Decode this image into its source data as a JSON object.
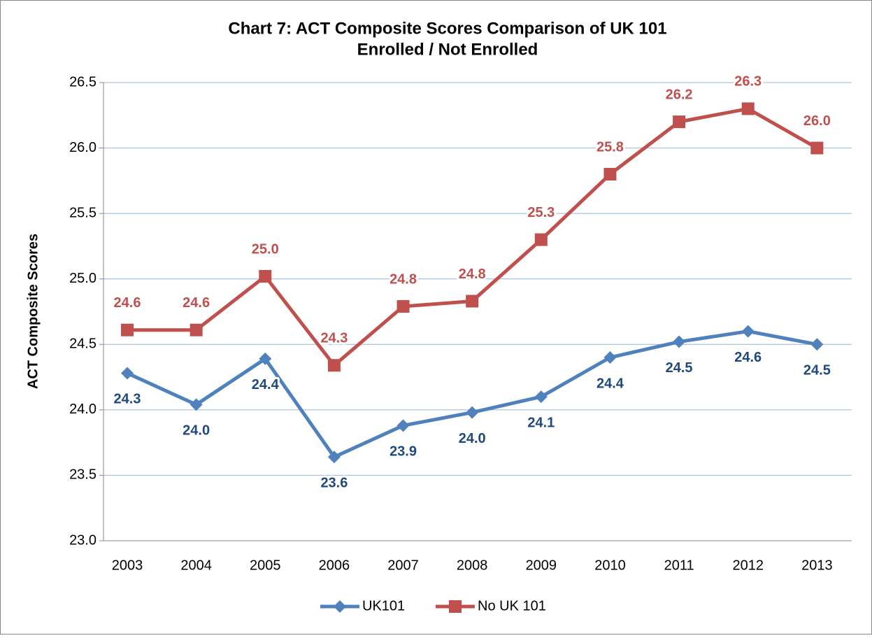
{
  "chart_data": {
    "type": "line",
    "title": [
      "Chart 7: ACT Composite Scores Comparison of UK 101",
      "Enrolled / Not Enrolled"
    ],
    "y_label": "ACT Composite Scores",
    "categories": [
      "2003",
      "2004",
      "2005",
      "2006",
      "2007",
      "2008",
      "2009",
      "2010",
      "2011",
      "2012",
      "2013"
    ],
    "series": [
      {
        "name": "UK101",
        "color": "#4f81bd",
        "label_color": "#1f497d",
        "marker": "diamond",
        "values": [
          24.28,
          24.04,
          24.39,
          23.64,
          23.88,
          23.98,
          24.1,
          24.4,
          24.52,
          24.6,
          24.5
        ],
        "value_labels": [
          "24.3",
          "24.0",
          "24.4",
          "23.6",
          "23.9",
          "24.0",
          "24.1",
          "24.4",
          "24.5",
          "24.6",
          "24.5"
        ]
      },
      {
        "name": "No UK 101",
        "color": "#c0504d",
        "label_color": "#c0504d",
        "marker": "square",
        "values": [
          24.61,
          24.61,
          25.02,
          24.34,
          24.79,
          24.83,
          25.3,
          25.8,
          26.2,
          26.3,
          26.0
        ],
        "value_labels": [
          "24.6",
          "24.6",
          "25.0",
          "24.3",
          "24.8",
          "24.8",
          "25.3",
          "25.8",
          "26.2",
          "26.3",
          "26.0"
        ]
      }
    ],
    "ylim": [
      23,
      26.5
    ],
    "yticks": [
      {
        "value": 23,
        "label": "23.0"
      },
      23.5,
      {
        "value": 24,
        "label": "24.0"
      },
      24.5,
      {
        "value": 25,
        "label": "25.0"
      },
      25.5,
      {
        "value": 26,
        "label": "26.0"
      },
      26.5
    ],
    "grid": true,
    "legend": "bottom"
  }
}
